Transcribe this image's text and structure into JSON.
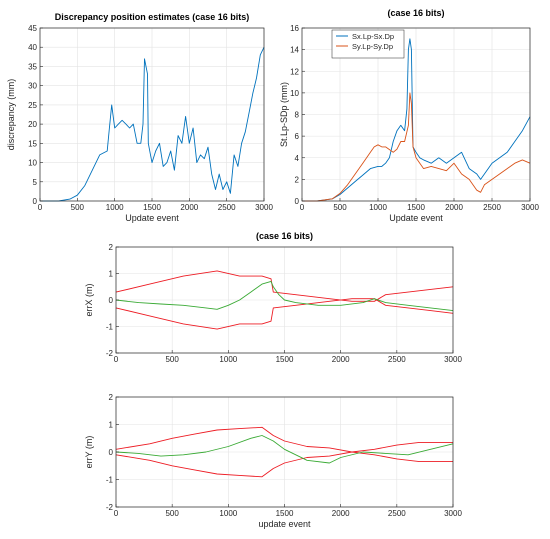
{
  "chart_data": [
    {
      "type": "line",
      "title": "Discrepancy position estimates (case 16 bits)",
      "xlabel": "Update event",
      "ylabel": "discrepancy (mm)",
      "xlim": [
        0,
        3000
      ],
      "ylim": [
        0,
        45
      ],
      "xticks": [
        0,
        500,
        1000,
        1500,
        2000,
        2500,
        3000
      ],
      "yticks": [
        0,
        5,
        10,
        15,
        20,
        25,
        30,
        35,
        40,
        45
      ],
      "grid": true,
      "series": [
        {
          "color": "#0072BD",
          "x": [
            0,
            100,
            250,
            400,
            500,
            600,
            700,
            800,
            900,
            930,
            960,
            1000,
            1050,
            1100,
            1150,
            1200,
            1250,
            1300,
            1350,
            1380,
            1400,
            1420,
            1440,
            1450,
            1480,
            1500,
            1550,
            1600,
            1650,
            1700,
            1750,
            1800,
            1850,
            1900,
            1950,
            2000,
            2050,
            2100,
            2150,
            2200,
            2250,
            2300,
            2350,
            2400,
            2450,
            2500,
            2550,
            2600,
            2650,
            2700,
            2750,
            2800,
            2850,
            2900,
            2950,
            3000
          ],
          "y": [
            0,
            0,
            0,
            0.5,
            1.5,
            4,
            8,
            12,
            13,
            19,
            25,
            19,
            20,
            21,
            20,
            19,
            20,
            15,
            15,
            20,
            37,
            35,
            33,
            15,
            12,
            10,
            13,
            15,
            9,
            10,
            13,
            8,
            17,
            15,
            22,
            15,
            19,
            10,
            12,
            11,
            14,
            7,
            3,
            7,
            3,
            5,
            2,
            12,
            9,
            15,
            18,
            23,
            28,
            32,
            38,
            40
          ]
        }
      ]
    },
    {
      "type": "line",
      "title": "(case 16 bits)",
      "xlabel": "Update event",
      "ylabel": "St.Lp-SDp (mm)",
      "xlim": [
        0,
        3000
      ],
      "ylim": [
        0,
        16
      ],
      "xticks": [
        0,
        500,
        1000,
        1500,
        2000,
        2500,
        3000
      ],
      "yticks": [
        0,
        2,
        4,
        6,
        8,
        10,
        12,
        14,
        16
      ],
      "grid": true,
      "legend_position": "top-left",
      "series": [
        {
          "name": "Sx.Lp-Sx.Dp",
          "color": "#0072BD",
          "x": [
            0,
            200,
            400,
            500,
            600,
            700,
            800,
            900,
            1000,
            1050,
            1100,
            1150,
            1200,
            1250,
            1300,
            1350,
            1380,
            1400,
            1420,
            1440,
            1460,
            1500,
            1550,
            1600,
            1700,
            1800,
            1900,
            2000,
            2100,
            2200,
            2300,
            2350,
            2400,
            2500,
            2600,
            2700,
            2800,
            2900,
            3000
          ],
          "y": [
            0,
            0,
            0.2,
            0.6,
            1.2,
            1.8,
            2.4,
            3,
            3.2,
            3.2,
            3.5,
            4,
            5.5,
            6.5,
            7,
            6.5,
            8.5,
            14,
            15,
            14,
            5,
            4.5,
            4,
            3.8,
            3.5,
            4,
            3.5,
            4,
            4.5,
            3,
            2.5,
            2,
            2.5,
            3.5,
            4,
            4.5,
            5.5,
            6.5,
            7.8
          ]
        },
        {
          "name": "Sy.Lp-Sy.Dp",
          "color": "#D95319",
          "x": [
            0,
            200,
            400,
            500,
            600,
            700,
            800,
            900,
            950,
            1000,
            1050,
            1100,
            1200,
            1250,
            1300,
            1350,
            1400,
            1420,
            1440,
            1460,
            1500,
            1550,
            1600,
            1700,
            1800,
            1900,
            2000,
            2100,
            2200,
            2300,
            2350,
            2400,
            2500,
            2600,
            2700,
            2800,
            2900,
            3000
          ],
          "y": [
            0,
            0,
            0.2,
            0.7,
            1.5,
            2.5,
            3.5,
            4.5,
            5,
            5.2,
            5,
            5,
            4.5,
            4.8,
            5.5,
            5.5,
            7,
            10,
            9,
            5,
            4,
            3.5,
            3,
            3.2,
            3,
            2.8,
            3.5,
            2.5,
            2,
            1,
            0.8,
            1.5,
            2,
            2.5,
            3,
            3.5,
            3.8,
            3.5
          ]
        }
      ]
    },
    {
      "type": "line",
      "title": "(case 16 bits)",
      "xlabel": "",
      "ylabel": "errX (m)",
      "xlim": [
        0,
        3000
      ],
      "ylim": [
        -2,
        2
      ],
      "xticks": [
        0,
        500,
        1000,
        1500,
        2000,
        2500,
        3000
      ],
      "yticks": [
        -2,
        -1,
        0,
        1,
        2
      ],
      "grid": true,
      "series": [
        {
          "color": "#ED1C24",
          "x": [
            0,
            300,
            600,
            900,
            1100,
            1300,
            1380,
            1400,
            1600,
            1900,
            2100,
            2300,
            2400,
            2600,
            2800,
            3000
          ],
          "y": [
            0.3,
            0.6,
            0.9,
            1.1,
            0.9,
            0.9,
            0.8,
            0.3,
            0.2,
            0.05,
            -0.05,
            -0.05,
            0.2,
            0.3,
            0.4,
            0.5
          ]
        },
        {
          "color": "#ED1C24",
          "x": [
            0,
            300,
            600,
            900,
            1100,
            1300,
            1380,
            1400,
            1600,
            1900,
            2100,
            2300,
            2400,
            2600,
            2800,
            3000
          ],
          "y": [
            -0.3,
            -0.6,
            -0.9,
            -1.1,
            -0.9,
            -0.9,
            -0.8,
            -0.3,
            -0.2,
            -0.05,
            0.05,
            0.05,
            -0.2,
            -0.3,
            -0.4,
            -0.5
          ]
        },
        {
          "color": "#3AAA35",
          "x": [
            0,
            200,
            400,
            600,
            800,
            900,
            1000,
            1100,
            1200,
            1300,
            1380,
            1400,
            1450,
            1500,
            1600,
            1800,
            2000,
            2200,
            2300,
            2400,
            2600,
            2800,
            3000
          ],
          "y": [
            0,
            -0.1,
            -0.15,
            -0.2,
            -0.3,
            -0.35,
            -0.2,
            0,
            0.3,
            0.6,
            0.7,
            0.5,
            0.2,
            0,
            -0.1,
            -0.2,
            -0.2,
            -0.1,
            0.05,
            -0.1,
            -0.2,
            -0.3,
            -0.4
          ]
        }
      ]
    },
    {
      "type": "line",
      "title": "",
      "xlabel": "update event",
      "ylabel": "errY (m)",
      "xlim": [
        0,
        3000
      ],
      "ylim": [
        -2,
        2
      ],
      "xticks": [
        0,
        500,
        1000,
        1500,
        2000,
        2500,
        3000
      ],
      "yticks": [
        -2,
        -1,
        0,
        1,
        2
      ],
      "grid": true,
      "series": [
        {
          "color": "#ED1C24",
          "x": [
            0,
            300,
            500,
            700,
            900,
            1100,
            1300,
            1400,
            1500,
            1700,
            1900,
            2100,
            2300,
            2500,
            2700,
            3000
          ],
          "y": [
            0.1,
            0.3,
            0.5,
            0.65,
            0.8,
            0.85,
            0.9,
            0.6,
            0.4,
            0.2,
            0.15,
            0,
            0.1,
            0.25,
            0.35,
            0.35
          ]
        },
        {
          "color": "#ED1C24",
          "x": [
            0,
            300,
            500,
            700,
            900,
            1100,
            1300,
            1400,
            1500,
            1700,
            1900,
            2100,
            2300,
            2500,
            2700,
            3000
          ],
          "y": [
            -0.1,
            -0.3,
            -0.5,
            -0.65,
            -0.8,
            -0.85,
            -0.9,
            -0.6,
            -0.4,
            -0.2,
            -0.15,
            0,
            -0.1,
            -0.25,
            -0.35,
            -0.35
          ]
        },
        {
          "color": "#3AAA35",
          "x": [
            0,
            200,
            400,
            600,
            800,
            1000,
            1200,
            1300,
            1400,
            1500,
            1700,
            1900,
            2000,
            2200,
            2400,
            2600,
            2800,
            3000
          ],
          "y": [
            0,
            -0.05,
            -0.15,
            -0.1,
            0,
            0.2,
            0.5,
            0.6,
            0.4,
            0.1,
            -0.3,
            -0.4,
            -0.2,
            0,
            -0.05,
            -0.1,
            0.1,
            0.3
          ]
        }
      ]
    }
  ]
}
